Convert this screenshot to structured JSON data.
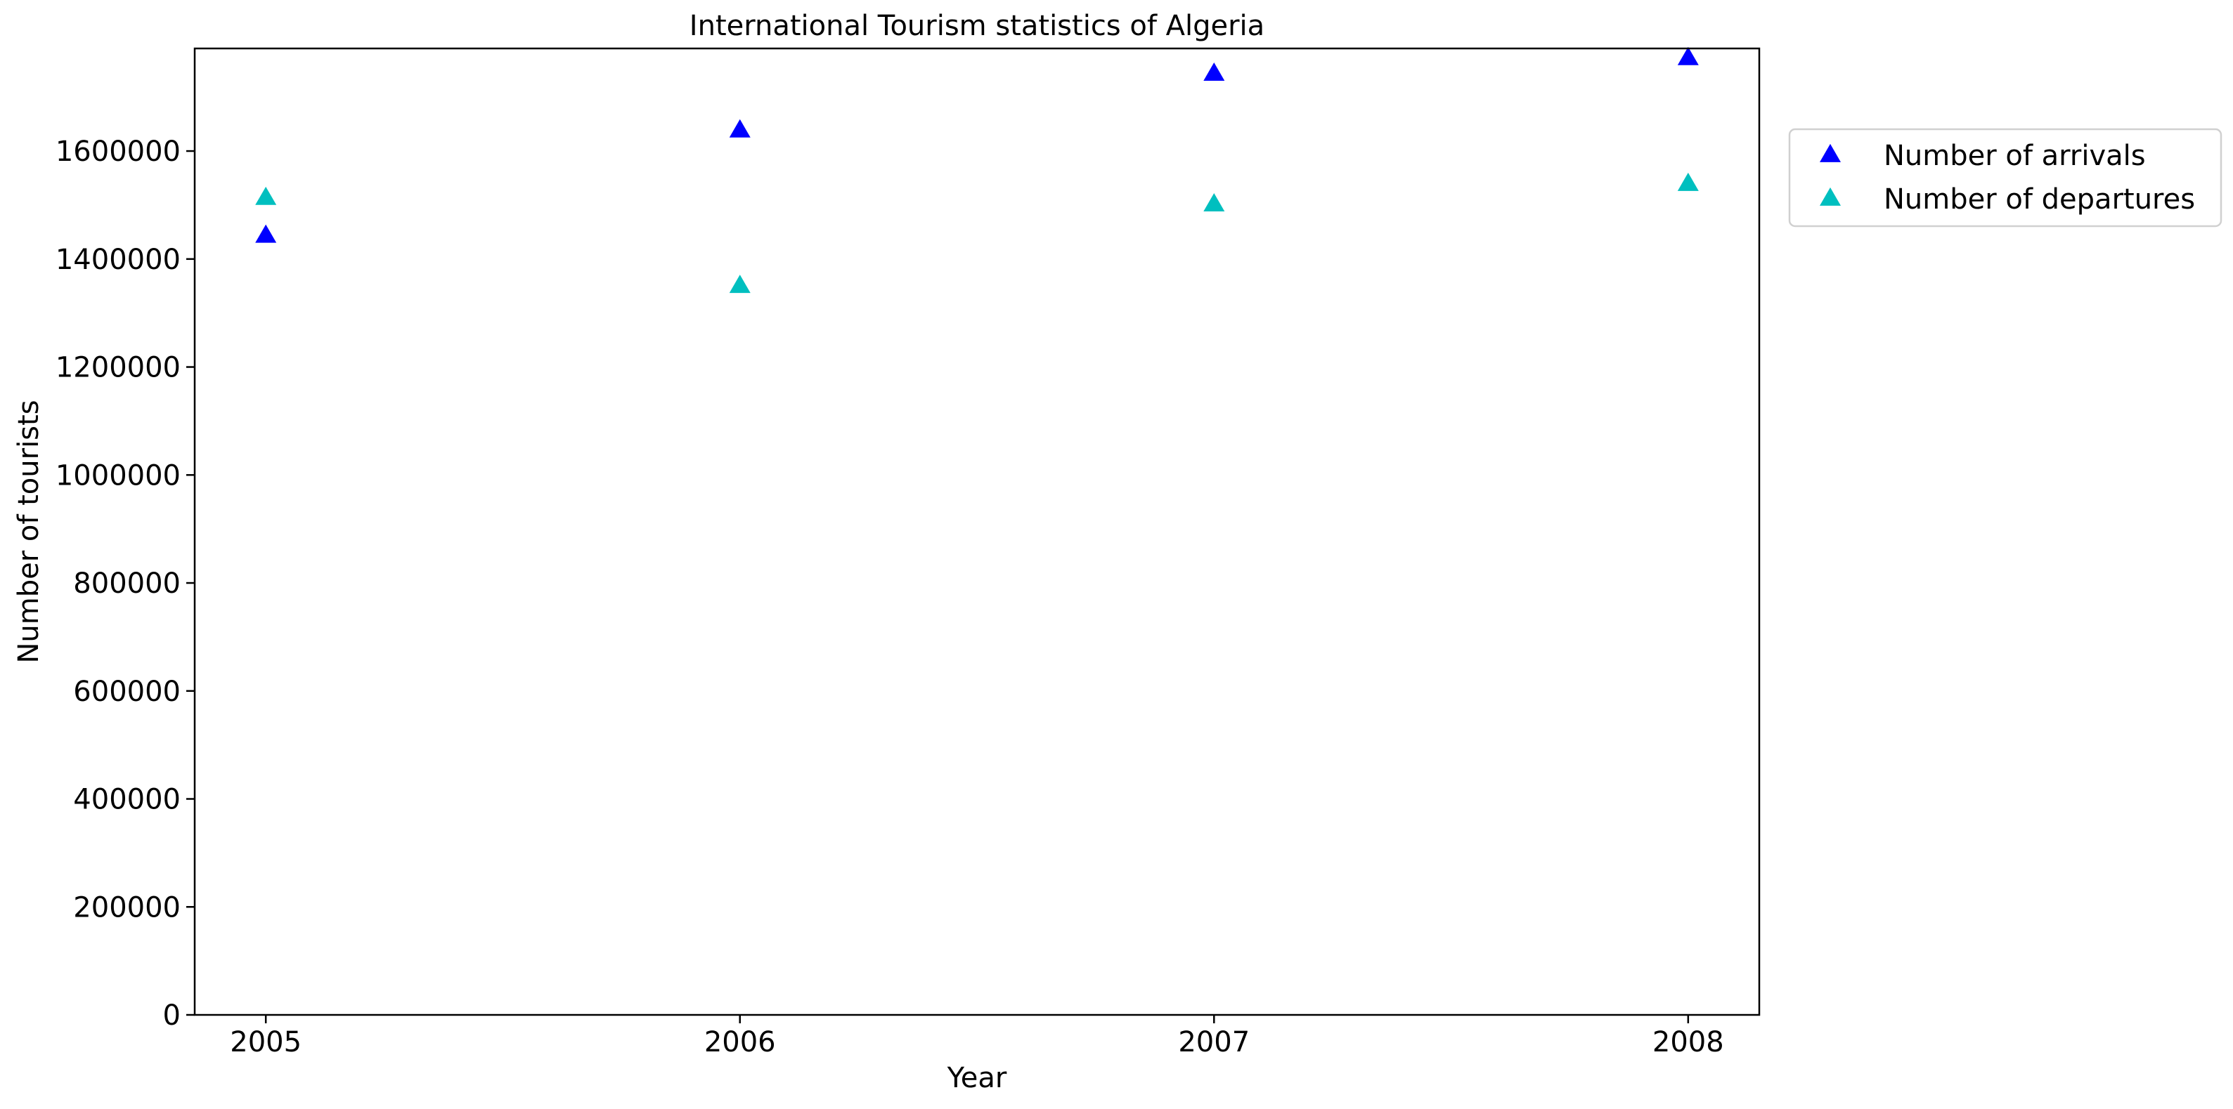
{
  "chart_data": {
    "type": "scatter",
    "title": "International Tourism statistics of Algeria",
    "xlabel": "Year",
    "ylabel": "Number of tourists",
    "x": [
      2005,
      2006,
      2007,
      2008
    ],
    "xticks": [
      "2005",
      "2006",
      "2007",
      "2008"
    ],
    "xlim": [
      2004.85,
      2008.15
    ],
    "ylim": [
      0,
      1790000
    ],
    "yticks": [
      "0",
      "200000",
      "400000",
      "600000",
      "800000",
      "1000000",
      "1200000",
      "1400000",
      "1600000"
    ],
    "grid": false,
    "legend_position": "outside-right-top",
    "marker": "triangle-up",
    "series": [
      {
        "name": "Number of arrivals",
        "color": "#0000ff",
        "values": [
          1443000,
          1638000,
          1743000,
          1772000
        ]
      },
      {
        "name": "Number of departures",
        "color": "#00bfbf",
        "values": [
          1513000,
          1350000,
          1501000,
          1539000
        ]
      }
    ]
  }
}
